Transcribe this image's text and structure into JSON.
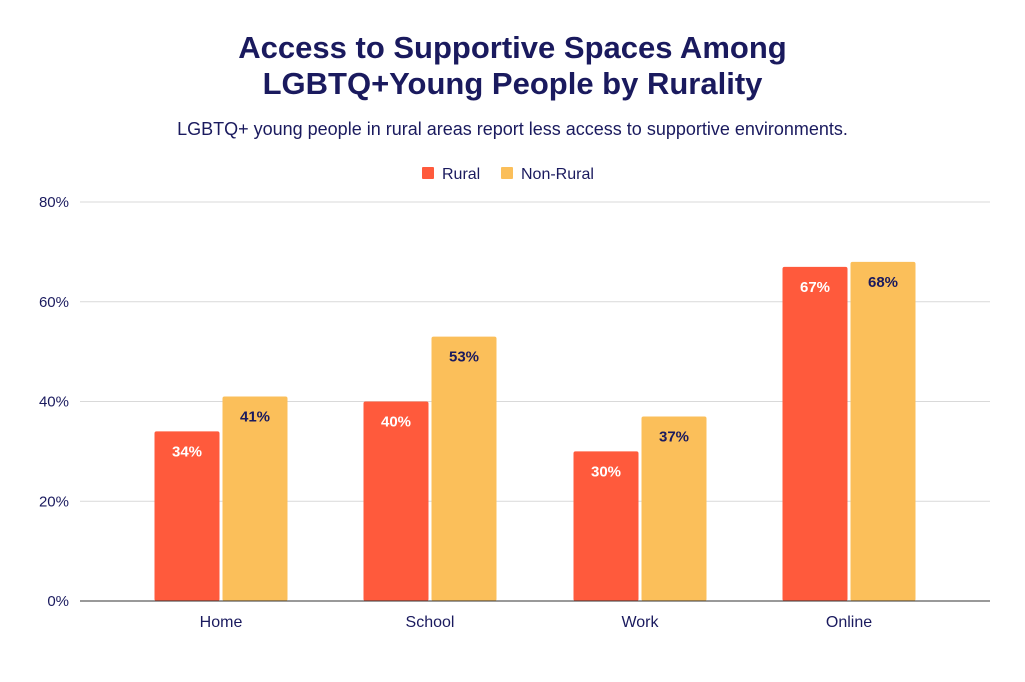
{
  "chart_data": {
    "type": "bar",
    "title_lines": [
      "Access to Supportive Spaces Among",
      "LGBTQ+Young People by Rurality"
    ],
    "subtitle": "LGBTQ+ young people in rural areas report less access to supportive environments.",
    "categories": [
      "Home",
      "School",
      "Work",
      "Online"
    ],
    "series": [
      {
        "name": "Rural",
        "color": "#ff5a3c",
        "label_color": "#ffffff",
        "values": [
          34,
          40,
          30,
          67
        ],
        "labels": [
          "34%",
          "40%",
          "30%",
          "67%"
        ]
      },
      {
        "name": "Non-Rural",
        "color": "#fbbf5a",
        "label_color": "#1a1a5e",
        "values": [
          41,
          53,
          37,
          68
        ],
        "labels": [
          "41%",
          "53%",
          "37%",
          "68%"
        ]
      }
    ],
    "ylim": [
      0,
      80
    ],
    "yticks": [
      0,
      20,
      40,
      60,
      80
    ],
    "ytick_labels": [
      "0%",
      "20%",
      "40%",
      "60%",
      "80%"
    ],
    "xlabel": "",
    "ylabel": "",
    "legend_position": "top-center",
    "grid": true
  }
}
